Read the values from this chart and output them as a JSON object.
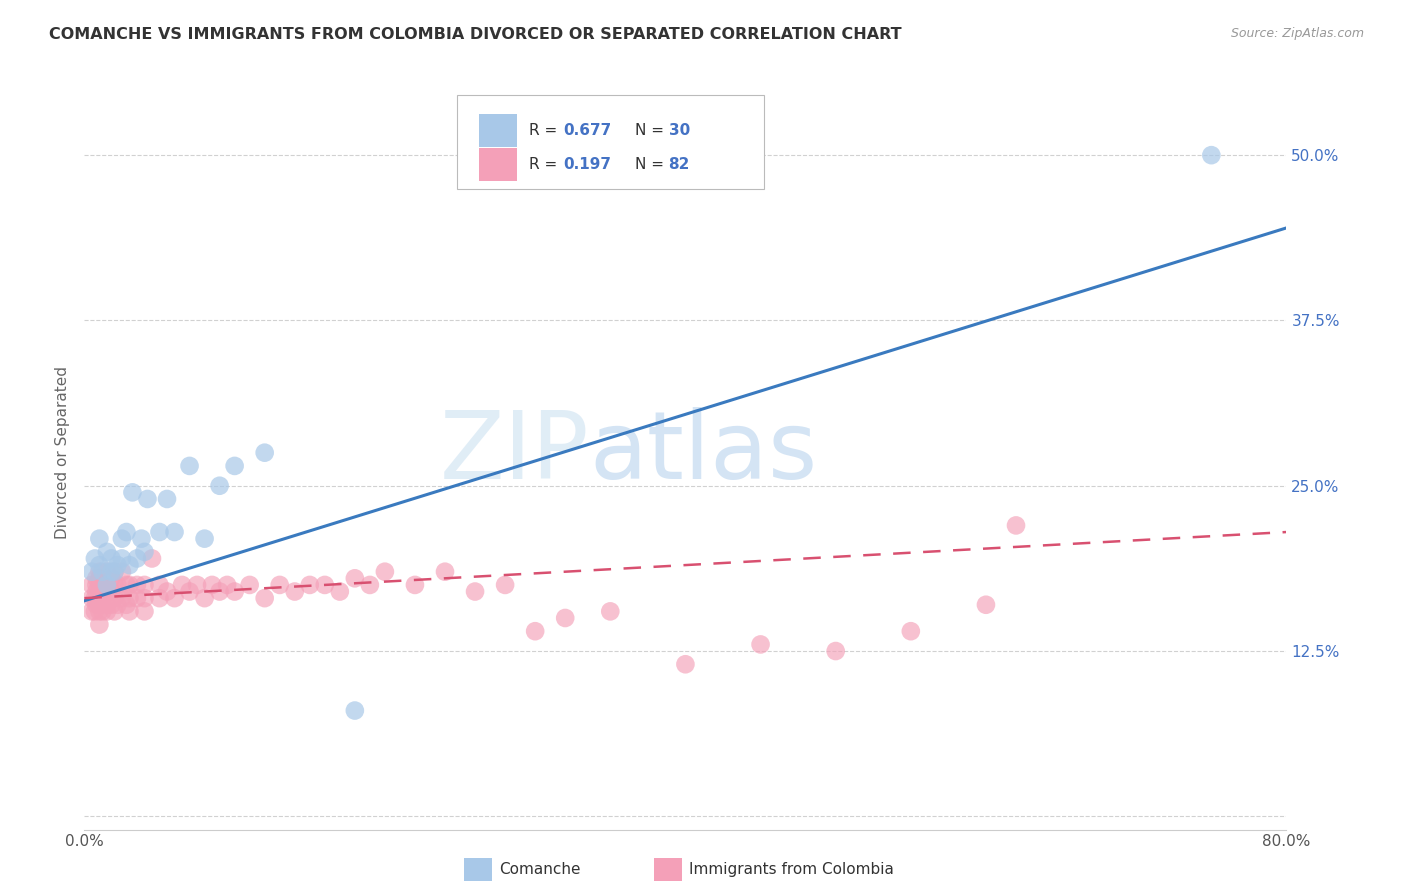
{
  "title": "COMANCHE VS IMMIGRANTS FROM COLOMBIA DIVORCED OR SEPARATED CORRELATION CHART",
  "source": "Source: ZipAtlas.com",
  "ylabel": "Divorced or Separated",
  "xlim": [
    0.0,
    0.8
  ],
  "ylim": [
    -0.01,
    0.56
  ],
  "yticks": [
    0.0,
    0.125,
    0.25,
    0.375,
    0.5
  ],
  "ytick_labels": [
    "",
    "12.5%",
    "25.0%",
    "37.5%",
    "50.0%"
  ],
  "xticks": [
    0.0,
    0.1,
    0.2,
    0.3,
    0.4,
    0.5,
    0.6,
    0.7,
    0.8
  ],
  "blue_color": "#a8c8e8",
  "pink_color": "#f4a0b8",
  "blue_line_color": "#3a7abf",
  "pink_line_color": "#d85070",
  "R_blue": 0.677,
  "N_blue": 30,
  "R_pink": 0.197,
  "N_pink": 82,
  "blue_line": {
    "x0": 0.0,
    "y0": 0.163,
    "x1": 0.8,
    "y1": 0.445
  },
  "pink_line": {
    "x0": 0.0,
    "y0": 0.165,
    "x1": 0.8,
    "y1": 0.215
  },
  "blue_scatter_x": [
    0.005,
    0.007,
    0.01,
    0.01,
    0.012,
    0.015,
    0.015,
    0.018,
    0.018,
    0.02,
    0.022,
    0.025,
    0.025,
    0.028,
    0.03,
    0.032,
    0.035,
    0.038,
    0.04,
    0.042,
    0.05,
    0.055,
    0.06,
    0.07,
    0.08,
    0.09,
    0.1,
    0.12,
    0.18,
    0.75
  ],
  "blue_scatter_y": [
    0.185,
    0.195,
    0.19,
    0.21,
    0.185,
    0.175,
    0.2,
    0.185,
    0.195,
    0.185,
    0.19,
    0.195,
    0.21,
    0.215,
    0.19,
    0.245,
    0.195,
    0.21,
    0.2,
    0.24,
    0.215,
    0.24,
    0.215,
    0.265,
    0.21,
    0.25,
    0.265,
    0.275,
    0.08,
    0.5
  ],
  "pink_scatter_x": [
    0.005,
    0.005,
    0.005,
    0.007,
    0.007,
    0.008,
    0.008,
    0.008,
    0.008,
    0.01,
    0.01,
    0.01,
    0.01,
    0.01,
    0.01,
    0.01,
    0.01,
    0.012,
    0.012,
    0.012,
    0.015,
    0.015,
    0.015,
    0.015,
    0.015,
    0.018,
    0.018,
    0.018,
    0.02,
    0.02,
    0.02,
    0.02,
    0.022,
    0.022,
    0.025,
    0.025,
    0.028,
    0.028,
    0.03,
    0.03,
    0.03,
    0.035,
    0.035,
    0.04,
    0.04,
    0.04,
    0.045,
    0.05,
    0.05,
    0.055,
    0.06,
    0.065,
    0.07,
    0.075,
    0.08,
    0.085,
    0.09,
    0.095,
    0.1,
    0.11,
    0.12,
    0.13,
    0.14,
    0.15,
    0.16,
    0.17,
    0.18,
    0.19,
    0.2,
    0.22,
    0.24,
    0.26,
    0.28,
    0.3,
    0.32,
    0.35,
    0.4,
    0.45,
    0.5,
    0.55,
    0.6,
    0.62
  ],
  "pink_scatter_y": [
    0.155,
    0.165,
    0.175,
    0.155,
    0.165,
    0.16,
    0.17,
    0.175,
    0.18,
    0.145,
    0.155,
    0.16,
    0.165,
    0.17,
    0.175,
    0.18,
    0.185,
    0.155,
    0.165,
    0.175,
    0.155,
    0.16,
    0.17,
    0.175,
    0.185,
    0.16,
    0.17,
    0.18,
    0.155,
    0.165,
    0.175,
    0.185,
    0.16,
    0.175,
    0.165,
    0.185,
    0.16,
    0.175,
    0.155,
    0.165,
    0.175,
    0.165,
    0.175,
    0.155,
    0.165,
    0.175,
    0.195,
    0.165,
    0.175,
    0.17,
    0.165,
    0.175,
    0.17,
    0.175,
    0.165,
    0.175,
    0.17,
    0.175,
    0.17,
    0.175,
    0.165,
    0.175,
    0.17,
    0.175,
    0.175,
    0.17,
    0.18,
    0.175,
    0.185,
    0.175,
    0.185,
    0.17,
    0.175,
    0.14,
    0.15,
    0.155,
    0.115,
    0.13,
    0.125,
    0.14,
    0.16,
    0.22
  ]
}
